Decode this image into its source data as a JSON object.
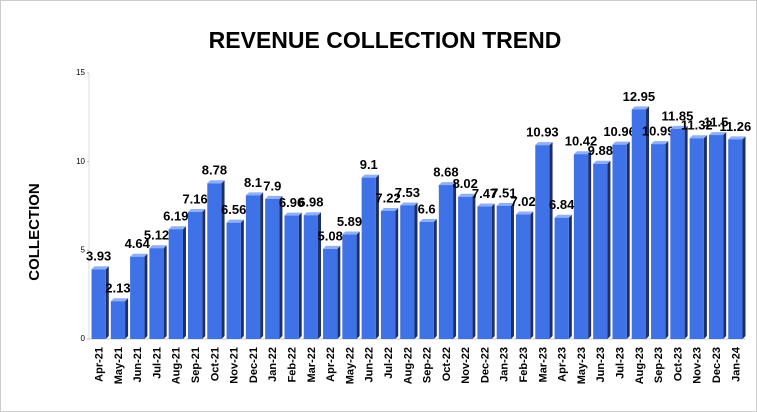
{
  "chart_data": {
    "type": "bar",
    "title": "REVENUE COLLECTION TREND",
    "y_label": "COLLECTION",
    "categories": [
      "Apr-21",
      "May-21",
      "Jun-21",
      "Jul-21",
      "Aug-21",
      "Sep-21",
      "Oct-21",
      "Nov-21",
      "Dec-21",
      "Jan-22",
      "Feb-22",
      "Mar-22",
      "Apr-22",
      "May-22",
      "Jun-22",
      "Jul-22",
      "Aug-22",
      "Sep-22",
      "Oct-22",
      "Nov-22",
      "Dec-22",
      "Jan-23",
      "Feb-23",
      "Mar-23",
      "Apr-23",
      "May-23",
      "Jun-23",
      "Jul-23",
      "Aug-23",
      "Sep-23",
      "Oct-23",
      "Nov-23",
      "Dec-23",
      "Jan-24"
    ],
    "values": [
      3.93,
      2.13,
      4.64,
      5.12,
      6.19,
      7.16,
      8.78,
      6.56,
      8.1,
      7.9,
      6.96,
      6.98,
      5.08,
      5.89,
      9.1,
      7.22,
      7.53,
      6.6,
      8.68,
      8.02,
      7.47,
      7.51,
      7.02,
      10.93,
      6.84,
      10.42,
      9.88,
      10.96,
      12.95,
      10.99,
      11.85,
      11.32,
      11.5,
      11.26
    ],
    "color": "#3f72e6",
    "ylim": [
      0,
      15
    ],
    "yticks": [
      0,
      5,
      10,
      15
    ],
    "grid": false
  }
}
